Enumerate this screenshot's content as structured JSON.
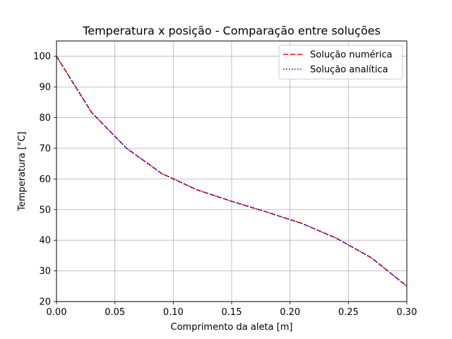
{
  "chart_data": {
    "type": "line",
    "title": "Temperatura x posição - Comparação entre soluções",
    "xlabel": "Comprimento da aleta [m]",
    "ylabel": "Temperatura [°C]",
    "xlim": [
      0.0,
      0.3
    ],
    "ylim": [
      20,
      105
    ],
    "xticks": [
      0.0,
      0.05,
      0.1,
      0.15,
      0.2,
      0.25,
      0.3
    ],
    "xtick_labels": [
      "0.00",
      "0.05",
      "0.10",
      "0.15",
      "0.20",
      "0.25",
      "0.30"
    ],
    "yticks": [
      20,
      30,
      40,
      50,
      60,
      70,
      80,
      90,
      100
    ],
    "ytick_labels": [
      "20",
      "30",
      "40",
      "50",
      "60",
      "70",
      "80",
      "90",
      "100"
    ],
    "grid": true,
    "legend_position": "top-right",
    "series": [
      {
        "name": "Solução numérica",
        "color": "#ff0000",
        "style": "dashed",
        "x": [
          0.0,
          0.03,
          0.06,
          0.09,
          0.12,
          0.15,
          0.18,
          0.21,
          0.24,
          0.27,
          0.3
        ],
        "values": [
          100,
          81.7,
          70.0,
          61.8,
          56.5,
          52.7,
          49.2,
          45.5,
          40.6,
          34.2,
          25.0
        ]
      },
      {
        "name": "Solução analítica",
        "color": "#0000bf",
        "style": "dotted",
        "x": [
          0.0,
          0.03,
          0.06,
          0.09,
          0.12,
          0.15,
          0.18,
          0.21,
          0.24,
          0.27,
          0.3
        ],
        "values": [
          100,
          81.7,
          70.0,
          61.8,
          56.5,
          52.7,
          49.2,
          45.5,
          40.6,
          34.2,
          25.0
        ]
      }
    ]
  }
}
